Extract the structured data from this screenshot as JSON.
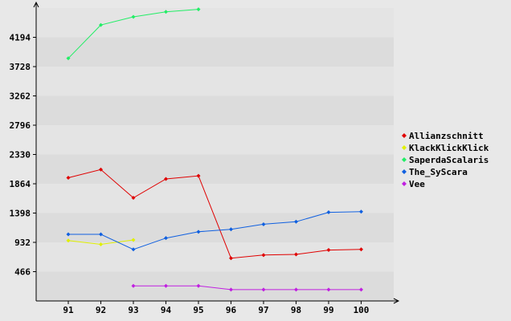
{
  "chart_data": {
    "type": "line",
    "title": "",
    "xlabel": "",
    "ylabel": "",
    "x": [
      "91",
      "92",
      "93",
      "94",
      "95",
      "96",
      "97",
      "98",
      "99",
      "100"
    ],
    "y_ticks": [
      466,
      932,
      1398,
      1864,
      2330,
      2796,
      3262,
      3728,
      4194
    ],
    "ylim": [
      0,
      4660
    ],
    "grid": true,
    "legend_position": "right",
    "series": [
      {
        "name": "Allianzschnitt",
        "color": "#e00000",
        "values": [
          1960,
          2090,
          1640,
          1940,
          1990,
          680,
          730,
          740,
          810,
          820
        ]
      },
      {
        "name": "KlackKlickKlick",
        "color": "#e0f000",
        "values": [
          960,
          900,
          970,
          null,
          null,
          null,
          null,
          null,
          null,
          null
        ]
      },
      {
        "name": "SaperdaScalaris",
        "color": "#22ee66",
        "values": [
          3860,
          4390,
          4520,
          4600,
          4640,
          null,
          null,
          null,
          null,
          null
        ]
      },
      {
        "name": "The_SyScara",
        "color": "#1060e0",
        "values": [
          1060,
          1060,
          820,
          1000,
          1100,
          1140,
          1220,
          1260,
          1410,
          1420
        ]
      },
      {
        "name": "Vee",
        "color": "#c020e0",
        "values": [
          null,
          null,
          240,
          240,
          240,
          180,
          180,
          180,
          180,
          180
        ]
      }
    ]
  }
}
